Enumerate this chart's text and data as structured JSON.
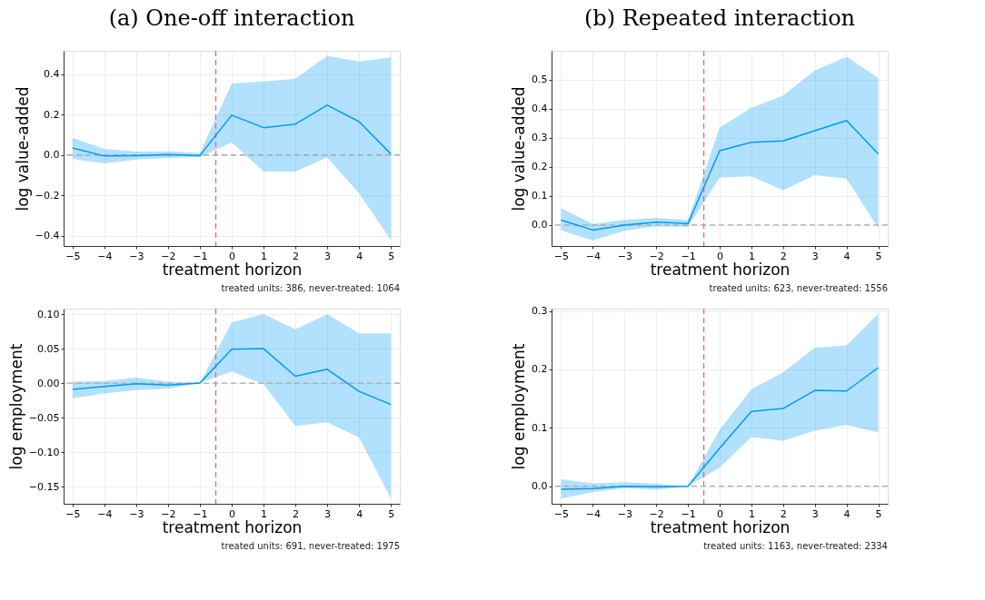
{
  "chart_data": [
    {
      "type": "line",
      "title": "(a) One-off interaction",
      "xlabel": "treatment horizon",
      "ylabel": "log value-added",
      "x": [
        -5,
        -4,
        -3,
        -2,
        -1,
        0,
        1,
        2,
        3,
        4,
        5
      ],
      "xlim": [
        -5.28,
        5.28
      ],
      "xticks": [
        -5,
        -4,
        -3,
        -2,
        -1,
        0,
        1,
        2,
        3,
        4,
        5
      ],
      "ylim": [
        -0.45,
        0.515
      ],
      "yticks": [
        {
          "value": -0.4,
          "label": "−0.4"
        },
        {
          "value": -0.2,
          "label": "−0.2"
        },
        {
          "value": 0,
          "label": "0.0"
        },
        {
          "value": 0.2,
          "label": "0.2"
        },
        {
          "value": 0.4,
          "label": "0.4"
        }
      ],
      "grid": true,
      "line_style": "solid",
      "marker": "none",
      "series": [
        {
          "color": "#009af9",
          "values": [
            0.035,
            -0.005,
            -0.003,
            0.002,
            -0.003,
            0.197,
            0.135,
            0.153,
            0.246,
            0.165,
            0.005
          ],
          "lower": [
            -0.02,
            -0.042,
            -0.022,
            -0.015,
            -0.01,
            0.062,
            -0.082,
            -0.082,
            -0.012,
            -0.19,
            -0.42
          ],
          "upper": [
            0.084,
            0.03,
            0.017,
            0.018,
            0.01,
            0.353,
            0.364,
            0.377,
            0.49,
            0.462,
            0.483
          ]
        }
      ],
      "ref_lines": [
        {
          "axis": "x",
          "value": -0.5,
          "color": "#ff5f5f",
          "line_style": "dashed"
        },
        {
          "axis": "y",
          "value": 0,
          "color": "#aaaaaa",
          "line_style": "dashed"
        }
      ],
      "annotations": [
        "treated units: 386, never-treated: 1064"
      ]
    },
    {
      "type": "line",
      "title": "(b) Repeated interaction",
      "xlabel": "treatment horizon",
      "ylabel": "log value-added",
      "x": [
        -5,
        -4,
        -3,
        -2,
        -1,
        0,
        1,
        2,
        3,
        4,
        5
      ],
      "xlim": [
        -5.3,
        5.3
      ],
      "xticks": [
        -5,
        -4,
        -3,
        -2,
        -1,
        0,
        1,
        2,
        3,
        4,
        5
      ],
      "ylim": [
        -0.072,
        0.6
      ],
      "yticks": [
        {
          "value": 0,
          "label": "0.0"
        },
        0.1,
        0.2,
        0.3,
        0.4,
        0.5
      ],
      "grid": true,
      "line_style": "solid",
      "marker": "none",
      "series": [
        {
          "color": "#009af9",
          "values": [
            0.017,
            -0.017,
            0.0,
            0.01,
            0.005,
            0.256,
            0.285,
            0.29,
            0.325,
            0.36,
            0.245
          ],
          "lower": [
            -0.018,
            -0.053,
            -0.02,
            -0.004,
            -0.006,
            0.163,
            0.168,
            0.12,
            0.172,
            0.16,
            -0.01
          ],
          "upper": [
            0.058,
            0.004,
            0.018,
            0.025,
            0.017,
            0.336,
            0.404,
            0.446,
            0.532,
            0.58,
            0.507
          ]
        }
      ],
      "ref_lines": [
        {
          "axis": "x",
          "value": -0.5,
          "color": "#ff5f5f",
          "line_style": "dashed"
        },
        {
          "axis": "y",
          "value": 0,
          "color": "#aaaaaa",
          "line_style": "dashed"
        }
      ],
      "annotations": [
        "treated units: 623, never-treated: 1556"
      ]
    },
    {
      "type": "line",
      "xlabel": "treatment horizon",
      "ylabel": "log employment",
      "x": [
        -5,
        -4,
        -3,
        -2,
        -1,
        0,
        1,
        2,
        3,
        4,
        5
      ],
      "xlim": [
        -5.28,
        5.28
      ],
      "xticks": [
        -5,
        -4,
        -3,
        -2,
        -1,
        0,
        1,
        2,
        3,
        4,
        5
      ],
      "ylim": [
        -0.175,
        0.108
      ],
      "yticks": [
        {
          "value": -0.15,
          "label": "−0.15"
        },
        {
          "value": -0.1,
          "label": "−0.10"
        },
        {
          "value": -0.05,
          "label": "−0.05"
        },
        {
          "value": 0,
          "label": "0.00"
        },
        0.05,
        {
          "value": 0.1,
          "label": "0.10"
        }
      ],
      "grid": true,
      "line_style": "solid",
      "marker": "none",
      "series": [
        {
          "color": "#009af9",
          "values": [
            -0.009,
            -0.005,
            -0.001,
            -0.003,
            0.0,
            0.049,
            0.05,
            0.01,
            0.02,
            -0.012,
            -0.031
          ],
          "lower": [
            -0.022,
            -0.015,
            -0.01,
            -0.008,
            0.0,
            0.017,
            -0.002,
            -0.062,
            -0.057,
            -0.079,
            -0.167
          ],
          "upper": [
            0.002,
            0.003,
            0.008,
            0.002,
            0.0,
            0.088,
            0.1,
            0.078,
            0.1,
            0.072,
            0.072
          ]
        }
      ],
      "ref_lines": [
        {
          "axis": "x",
          "value": -0.5,
          "color": "#ff5f5f",
          "line_style": "dashed"
        },
        {
          "axis": "y",
          "value": 0,
          "color": "#aaaaaa",
          "line_style": "dashed"
        }
      ],
      "annotations": [
        "treated units: 691, never-treated: 1975"
      ]
    },
    {
      "type": "line",
      "xlabel": "treatment horizon",
      "ylabel": "log employment",
      "x": [
        -5,
        -4,
        -3,
        -2,
        -1,
        0,
        1,
        2,
        3,
        4,
        5
      ],
      "xlim": [
        -5.3,
        5.3
      ],
      "xticks": [
        -5,
        -4,
        -3,
        -2,
        -1,
        0,
        1,
        2,
        3,
        4,
        5
      ],
      "ylim": [
        -0.03,
        0.304
      ],
      "yticks": [
        {
          "value": 0,
          "label": "0.0"
        },
        0.1,
        0.2,
        0.3
      ],
      "grid": true,
      "line_style": "solid",
      "marker": "none",
      "series": [
        {
          "color": "#009af9",
          "values": [
            -0.005,
            -0.004,
            0.0,
            -0.001,
            0.0,
            0.065,
            0.128,
            0.133,
            0.164,
            0.163,
            0.203
          ],
          "lower": [
            -0.021,
            -0.01,
            -0.003,
            -0.006,
            0.0,
            0.032,
            0.084,
            0.078,
            0.095,
            0.105,
            0.092
          ],
          "upper": [
            0.012,
            0.005,
            0.007,
            0.004,
            0.0,
            0.097,
            0.166,
            0.195,
            0.237,
            0.241,
            0.295
          ]
        }
      ],
      "ref_lines": [
        {
          "axis": "x",
          "value": -0.5,
          "color": "#ff5f5f",
          "line_style": "dashed"
        },
        {
          "axis": "y",
          "value": 0,
          "color": "#aaaaaa",
          "line_style": "dashed"
        }
      ],
      "annotations": [
        "treated units: 1163, never-treated: 2334"
      ]
    }
  ]
}
